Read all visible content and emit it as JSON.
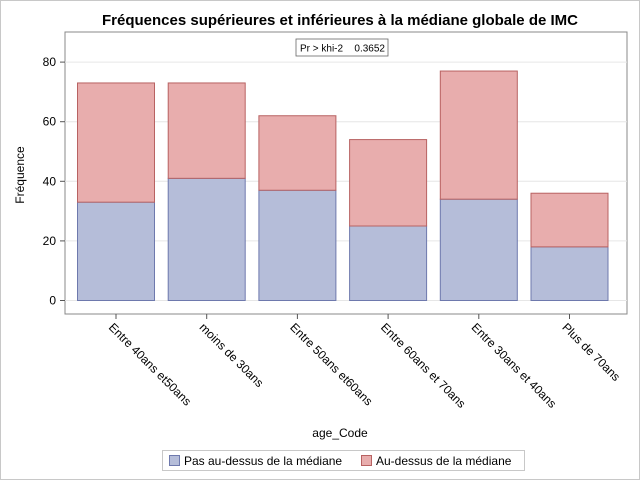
{
  "chart_data": {
    "type": "bar",
    "stacked": true,
    "title": "Fréquences supérieures et inférieures à la médiane globale de IMC",
    "xlabel": "age_Code",
    "ylabel": "Fréquence",
    "ylim": [
      0,
      88
    ],
    "yticks": [
      0,
      20,
      40,
      60,
      80
    ],
    "grid": true,
    "legend_position": "bottom",
    "inset": {
      "label": "Pr > khi-2",
      "value": "0.3652"
    },
    "categories": [
      "Entre 40ans et50ans",
      "moins de 30ans",
      "Entre 50ans et60ans",
      "Entre 60ans et 70ans",
      "Entre 30ans et 40ans",
      "Plus de 70ans"
    ],
    "series": [
      {
        "name": "Pas au-dessus de la médiane",
        "values": [
          33,
          41,
          37,
          25,
          34,
          18
        ],
        "color": "#b5bdd9",
        "edge": "#6e79ad"
      },
      {
        "name": "Au-dessus de la médiane",
        "values": [
          40,
          32,
          25,
          29,
          43,
          18
        ],
        "color": "#e8adad",
        "edge": "#b86262"
      }
    ]
  }
}
